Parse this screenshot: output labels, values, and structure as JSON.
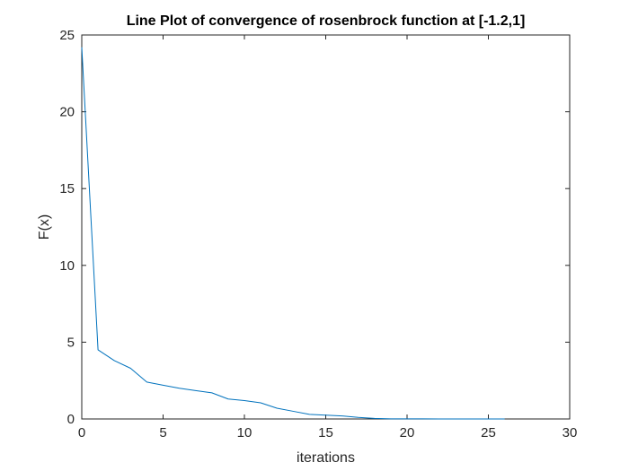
{
  "chart_data": {
    "type": "line",
    "title": "Line Plot of convergence of rosenbrock function at [-1.2,1]",
    "xlabel": "iterations",
    "ylabel": "F(x)",
    "xlim": [
      0,
      30
    ],
    "ylim": [
      0,
      25
    ],
    "xticks": [
      0,
      5,
      10,
      15,
      20,
      25,
      30
    ],
    "yticks": [
      0,
      5,
      10,
      15,
      20,
      25
    ],
    "xtick_labels": [
      "0",
      "5",
      "10",
      "15",
      "20",
      "25",
      "30"
    ],
    "ytick_labels": [
      "0",
      "5",
      "10",
      "15",
      "20",
      "25"
    ],
    "grid": false,
    "box": true,
    "series": [
      {
        "color": "#0072BD",
        "x": [
          0,
          1,
          2,
          3,
          4,
          5,
          6,
          7,
          8,
          9,
          10,
          11,
          12,
          13,
          14,
          15,
          16,
          17,
          18,
          19,
          20,
          21,
          22,
          23,
          24,
          25,
          26
        ],
        "y": [
          24.2,
          4.5,
          3.8,
          3.3,
          2.4,
          2.2,
          2.0,
          1.85,
          1.7,
          1.3,
          1.2,
          1.05,
          0.7,
          0.5,
          0.3,
          0.25,
          0.2,
          0.1,
          0.04,
          0.01,
          0.01,
          0.005,
          0.002,
          0.001,
          0.0005,
          0.0002,
          0.0001
        ]
      }
    ]
  }
}
